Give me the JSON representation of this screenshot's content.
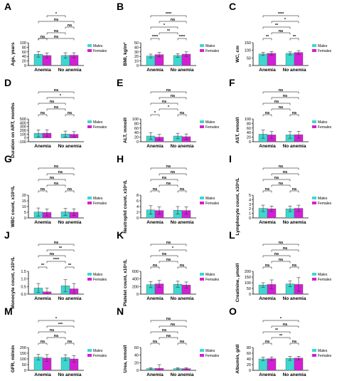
{
  "legend": {
    "males": "Males",
    "females": "Females"
  },
  "colors": {
    "males": "#3dd7d0",
    "females": "#d21fd6"
  },
  "chart_data": [
    {
      "label": "A",
      "type": "bar",
      "ylabel": "Age, years",
      "categories": [
        "Anemia",
        "No anemia"
      ],
      "series": [
        {
          "name": "Males",
          "values": [
            49,
            44
          ],
          "err": [
            12,
            12
          ]
        },
        {
          "name": "Females",
          "values": [
            44,
            45
          ],
          "err": [
            11,
            11
          ]
        }
      ],
      "ylim": [
        0,
        100
      ],
      "yticks": [
        "0",
        "20",
        "40",
        "60",
        "80",
        "100"
      ],
      "brackets": [
        {
          "from": 0,
          "to": 1,
          "text": "ns"
        },
        {
          "from": 0,
          "to": 3,
          "text": "ns"
        },
        {
          "from": 1,
          "to": 2,
          "text": "ns"
        },
        {
          "from": 2,
          "to": 3,
          "text": "ns"
        },
        {
          "from": 0,
          "to": 3,
          "text": "ns"
        },
        {
          "from": 1,
          "to": 2,
          "text": "*"
        }
      ]
    },
    {
      "label": "B",
      "type": "bar",
      "ylabel": "BMI, kg/m²",
      "categories": [
        "Anemia",
        "No anemia"
      ],
      "series": [
        {
          "name": "Males",
          "values": [
            21,
            22
          ],
          "err": [
            4,
            4
          ]
        },
        {
          "name": "Females",
          "values": [
            24,
            25
          ],
          "err": [
            5,
            5
          ]
        }
      ],
      "ylim": [
        0,
        50
      ],
      "yticks": [
        "0",
        "10",
        "20",
        "30",
        "40",
        "50"
      ],
      "brackets": [
        {
          "from": 0,
          "to": 1,
          "text": "****"
        },
        {
          "from": 2,
          "to": 3,
          "text": "****"
        },
        {
          "from": 1,
          "to": 2,
          "text": "**"
        },
        {
          "from": 0,
          "to": 2,
          "text": "*"
        },
        {
          "from": 1,
          "to": 3,
          "text": "ns"
        },
        {
          "from": 0,
          "to": 3,
          "text": "****"
        }
      ]
    },
    {
      "label": "C",
      "type": "bar",
      "ylabel": "WC, cm",
      "categories": [
        "Anemia",
        "No anemia"
      ],
      "series": [
        {
          "name": "Males",
          "values": [
            76,
            80
          ],
          "err": [
            10,
            10
          ]
        },
        {
          "name": "Females",
          "values": [
            80,
            86
          ],
          "err": [
            12,
            12
          ]
        }
      ],
      "ylim": [
        0,
        150
      ],
      "yticks": [
        "0",
        "50",
        "100",
        "150"
      ],
      "brackets": [
        {
          "from": 0,
          "to": 1,
          "text": "**"
        },
        {
          "from": 2,
          "to": 3,
          "text": "**"
        },
        {
          "from": 1,
          "to": 2,
          "text": "ns"
        },
        {
          "from": 0,
          "to": 2,
          "text": "**"
        },
        {
          "from": 1,
          "to": 3,
          "text": "*"
        },
        {
          "from": 0,
          "to": 3,
          "text": "****"
        }
      ]
    },
    {
      "label": "D",
      "type": "bar",
      "ylabel": "Duration on ART, months",
      "categories": [
        "Anemia",
        "No anemia"
      ],
      "series": [
        {
          "name": "Males",
          "values": [
            120,
            100
          ],
          "err": [
            90,
            80
          ]
        },
        {
          "name": "Females",
          "values": [
            125,
            95
          ],
          "err": [
            90,
            70
          ]
        }
      ],
      "ylim": [
        -100,
        500
      ],
      "yticks": [
        "-100",
        "0",
        "100",
        "200",
        "300",
        "400",
        "500"
      ],
      "brackets": [
        {
          "from": 0,
          "to": 1,
          "text": "ns"
        },
        {
          "from": 2,
          "to": 3,
          "text": "ns"
        },
        {
          "from": 1,
          "to": 2,
          "text": "ns"
        },
        {
          "from": 0,
          "to": 2,
          "text": "ns"
        },
        {
          "from": 1,
          "to": 3,
          "text": "*"
        },
        {
          "from": 0,
          "to": 3,
          "text": "ns"
        }
      ]
    },
    {
      "label": "E",
      "type": "bar",
      "ylabel": "ALT, mmol/l",
      "categories": [
        "Anemia",
        "No anemia"
      ],
      "series": [
        {
          "name": "Males",
          "values": [
            25,
            25
          ],
          "err": [
            15,
            12
          ]
        },
        {
          "name": "Females",
          "values": [
            20,
            22
          ],
          "err": [
            12,
            12
          ]
        }
      ],
      "ylim": [
        0,
        100
      ],
      "yticks": [
        "0",
        "20",
        "40",
        "60",
        "80",
        "100"
      ],
      "brackets": [
        {
          "from": 0,
          "to": 1,
          "text": "*"
        },
        {
          "from": 2,
          "to": 3,
          "text": "ns"
        },
        {
          "from": 1,
          "to": 2,
          "text": "*"
        },
        {
          "from": 0,
          "to": 2,
          "text": "ns"
        },
        {
          "from": 1,
          "to": 3,
          "text": "ns"
        },
        {
          "from": 0,
          "to": 3,
          "text": "ns"
        }
      ]
    },
    {
      "label": "F",
      "type": "bar",
      "ylabel": "AST, mmol/l",
      "categories": [
        "Anemia",
        "No anemia"
      ],
      "series": [
        {
          "name": "Males",
          "values": [
            33,
            30
          ],
          "err": [
            18,
            15
          ]
        },
        {
          "name": "Females",
          "values": [
            30,
            31
          ],
          "err": [
            15,
            15
          ]
        }
      ],
      "ylim": [
        0,
        100
      ],
      "yticks": [
        "0",
        "20",
        "40",
        "60",
        "80",
        "100"
      ],
      "brackets": [
        {
          "from": 0,
          "to": 1,
          "text": "ns"
        },
        {
          "from": 2,
          "to": 3,
          "text": "ns"
        },
        {
          "from": 1,
          "to": 2,
          "text": "ns"
        },
        {
          "from": 0,
          "to": 2,
          "text": "ns"
        },
        {
          "from": 1,
          "to": 3,
          "text": "ns"
        },
        {
          "from": 0,
          "to": 3,
          "text": "ns"
        }
      ]
    },
    {
      "label": "G",
      "type": "bar",
      "ylabel": "WBC count, x10⁹/L",
      "categories": [
        "Anemia",
        "No anemia"
      ],
      "series": [
        {
          "name": "Males",
          "values": [
            5.2,
            5.3
          ],
          "err": [
            3.5,
            3.0
          ]
        },
        {
          "name": "Females",
          "values": [
            4.8,
            5.0
          ],
          "err": [
            3.0,
            3.0
          ]
        }
      ],
      "ylim": [
        0,
        20
      ],
      "yticks": [
        "0",
        "5",
        "10",
        "15",
        "20"
      ],
      "brackets": [
        {
          "from": 0,
          "to": 1,
          "text": "ns"
        },
        {
          "from": 2,
          "to": 3,
          "text": "ns"
        },
        {
          "from": 1,
          "to": 2,
          "text": "ns"
        },
        {
          "from": 0,
          "to": 2,
          "text": "ns"
        },
        {
          "from": 1,
          "to": 3,
          "text": "ns"
        },
        {
          "from": 0,
          "to": 3,
          "text": "ns"
        }
      ]
    },
    {
      "label": "H",
      "type": "bar",
      "ylabel": "Neutrophil count, x10⁹/L",
      "categories": [
        "Anemia",
        "No anemia"
      ],
      "series": [
        {
          "name": "Males",
          "values": [
            2.8,
            2.7
          ],
          "err": [
            1.5,
            1.3
          ]
        },
        {
          "name": "Females",
          "values": [
            2.6,
            2.6
          ],
          "err": [
            1.3,
            1.3
          ]
        }
      ],
      "ylim": [
        0,
        8
      ],
      "yticks": [
        "0",
        "2",
        "4",
        "6",
        "8"
      ],
      "brackets": [
        {
          "from": 0,
          "to": 1,
          "text": "ns"
        },
        {
          "from": 2,
          "to": 3,
          "text": "ns"
        },
        {
          "from": 1,
          "to": 2,
          "text": "ns"
        },
        {
          "from": 0,
          "to": 2,
          "text": "ns"
        },
        {
          "from": 1,
          "to": 3,
          "text": "ns"
        },
        {
          "from": 0,
          "to": 3,
          "text": "ns"
        }
      ]
    },
    {
      "label": "I",
      "type": "bar",
      "ylabel": "Lymphocyte count, x10⁹/L",
      "categories": [
        "Anemia",
        "No anemia"
      ],
      "series": [
        {
          "name": "Males",
          "values": [
            2.1,
            2.0
          ],
          "err": [
            0.7,
            0.6
          ]
        },
        {
          "name": "Females",
          "values": [
            2.0,
            2.1
          ],
          "err": [
            0.6,
            0.7
          ]
        }
      ],
      "ylim": [
        0,
        5
      ],
      "yticks": [
        "0",
        "1",
        "2",
        "3",
        "4",
        "5"
      ],
      "brackets": [
        {
          "from": 0,
          "to": 1,
          "text": "ns"
        },
        {
          "from": 2,
          "to": 3,
          "text": "ns"
        },
        {
          "from": 1,
          "to": 2,
          "text": "ns"
        },
        {
          "from": 0,
          "to": 2,
          "text": "ns"
        },
        {
          "from": 1,
          "to": 3,
          "text": "ns"
        },
        {
          "from": 0,
          "to": 3,
          "text": "ns"
        }
      ]
    },
    {
      "label": "J",
      "type": "bar",
      "ylabel": "Monocyte count, x10⁹/L",
      "categories": [
        "Anemia",
        "No anemia"
      ],
      "series": [
        {
          "name": "Males",
          "values": [
            0.4,
            0.55
          ],
          "err": [
            0.3,
            0.4
          ]
        },
        {
          "name": "Females",
          "values": [
            0.15,
            0.35
          ],
          "err": [
            0.25,
            0.35
          ]
        }
      ],
      "ylim": [
        0,
        1.5
      ],
      "yticks": [
        "0.0",
        "0.5",
        "1.0",
        "1.5"
      ],
      "brackets": [
        {
          "from": 0,
          "to": 1,
          "text": "**"
        },
        {
          "from": 2,
          "to": 3,
          "text": "**"
        },
        {
          "from": 1,
          "to": 2,
          "text": "****"
        },
        {
          "from": 0,
          "to": 2,
          "text": "ns"
        },
        {
          "from": 1,
          "to": 3,
          "text": "**"
        },
        {
          "from": 0,
          "to": 3,
          "text": "ns"
        }
      ]
    },
    {
      "label": "K",
      "type": "bar",
      "ylabel": "Platelet count, x10⁹/L",
      "categories": [
        "Anemia",
        "No anemia"
      ],
      "series": [
        {
          "name": "Males",
          "values": [
            250,
            260
          ],
          "err": [
            80,
            80
          ]
        },
        {
          "name": "Females",
          "values": [
            270,
            240
          ],
          "err": [
            90,
            80
          ]
        }
      ],
      "ylim": [
        0,
        600
      ],
      "yticks": [
        "0",
        "200",
        "400",
        "600"
      ],
      "brackets": [
        {
          "from": 0,
          "to": 1,
          "text": "ns"
        },
        {
          "from": 2,
          "to": 3,
          "text": "ns"
        },
        {
          "from": 1,
          "to": 2,
          "text": "ns"
        },
        {
          "from": 0,
          "to": 2,
          "text": "ns"
        },
        {
          "from": 1,
          "to": 3,
          "text": "*"
        },
        {
          "from": 0,
          "to": 3,
          "text": "ns"
        }
      ]
    },
    {
      "label": "L",
      "type": "bar",
      "ylabel": "Creatinine, μmol/l",
      "categories": [
        "Anemia",
        "No anemia"
      ],
      "series": [
        {
          "name": "Males",
          "values": [
            80,
            90
          ],
          "err": [
            20,
            25
          ]
        },
        {
          "name": "Females",
          "values": [
            85,
            85
          ],
          "err": [
            40,
            60
          ]
        }
      ],
      "ylim": [
        0,
        200
      ],
      "yticks": [
        "0",
        "50",
        "100",
        "150",
        "200"
      ],
      "brackets": [
        {
          "from": 0,
          "to": 1,
          "text": "ns"
        },
        {
          "from": 2,
          "to": 3,
          "text": "ns"
        },
        {
          "from": 1,
          "to": 2,
          "text": "ns"
        },
        {
          "from": 0,
          "to": 2,
          "text": "ns"
        },
        {
          "from": 1,
          "to": 3,
          "text": "ns"
        },
        {
          "from": 0,
          "to": 3,
          "text": "ns"
        }
      ]
    },
    {
      "label": "M",
      "type": "bar",
      "ylabel": "GFR, ml/min",
      "categories": [
        "Anemia",
        "No anemia"
      ],
      "series": [
        {
          "name": "Males",
          "values": [
            115,
            112
          ],
          "err": [
            25,
            25
          ]
        },
        {
          "name": "Females",
          "values": [
            108,
            100
          ],
          "err": [
            30,
            30
          ]
        }
      ],
      "ylim": [
        0,
        200
      ],
      "yticks": [
        "0",
        "50",
        "100",
        "150",
        "200"
      ],
      "brackets": [
        {
          "from": 0,
          "to": 1,
          "text": "ns"
        },
        {
          "from": 2,
          "to": 3,
          "text": "ns"
        },
        {
          "from": 1,
          "to": 2,
          "text": "ns"
        },
        {
          "from": 0,
          "to": 2,
          "text": "ns"
        },
        {
          "from": 1,
          "to": 3,
          "text": "***"
        },
        {
          "from": 0,
          "to": 3,
          "text": "*"
        }
      ]
    },
    {
      "label": "N",
      "type": "bar",
      "ylabel": "Urea, mmol/l",
      "categories": [
        "Anemia",
        "No anemia"
      ],
      "series": [
        {
          "name": "Males",
          "values": [
            4.5,
            4.5
          ],
          "err": [
            2,
            2
          ]
        },
        {
          "name": "Females",
          "values": [
            5,
            4.5
          ],
          "err": [
            10,
            2
          ]
        }
      ],
      "ylim": [
        0,
        60
      ],
      "yticks": [
        "0",
        "20",
        "40",
        "60"
      ],
      "brackets": [
        {
          "from": 0,
          "to": 1,
          "text": "ns"
        },
        {
          "from": 2,
          "to": 3,
          "text": "ns"
        },
        {
          "from": 1,
          "to": 2,
          "text": "ns"
        },
        {
          "from": 0,
          "to": 2,
          "text": "ns"
        },
        {
          "from": 1,
          "to": 3,
          "text": "ns"
        },
        {
          "from": 0,
          "to": 3,
          "text": "ns"
        }
      ]
    },
    {
      "label": "O",
      "type": "bar",
      "ylabel": "Albumin, g/dl",
      "categories": [
        "Anemia",
        "No anemia"
      ],
      "series": [
        {
          "name": "Males",
          "values": [
            40,
            42
          ],
          "err": [
            6,
            7
          ]
        },
        {
          "name": "Females",
          "values": [
            41,
            43
          ],
          "err": [
            6,
            6
          ]
        }
      ],
      "ylim": [
        0,
        80
      ],
      "yticks": [
        "0",
        "20",
        "40",
        "60",
        "80"
      ],
      "brackets": [
        {
          "from": 0,
          "to": 1,
          "text": "ns"
        },
        {
          "from": 2,
          "to": 3,
          "text": "ns"
        },
        {
          "from": 1,
          "to": 2,
          "text": "**"
        },
        {
          "from": 0,
          "to": 2,
          "text": "**"
        },
        {
          "from": 1,
          "to": 3,
          "text": "ns"
        },
        {
          "from": 0,
          "to": 3,
          "text": "*"
        }
      ]
    }
  ]
}
